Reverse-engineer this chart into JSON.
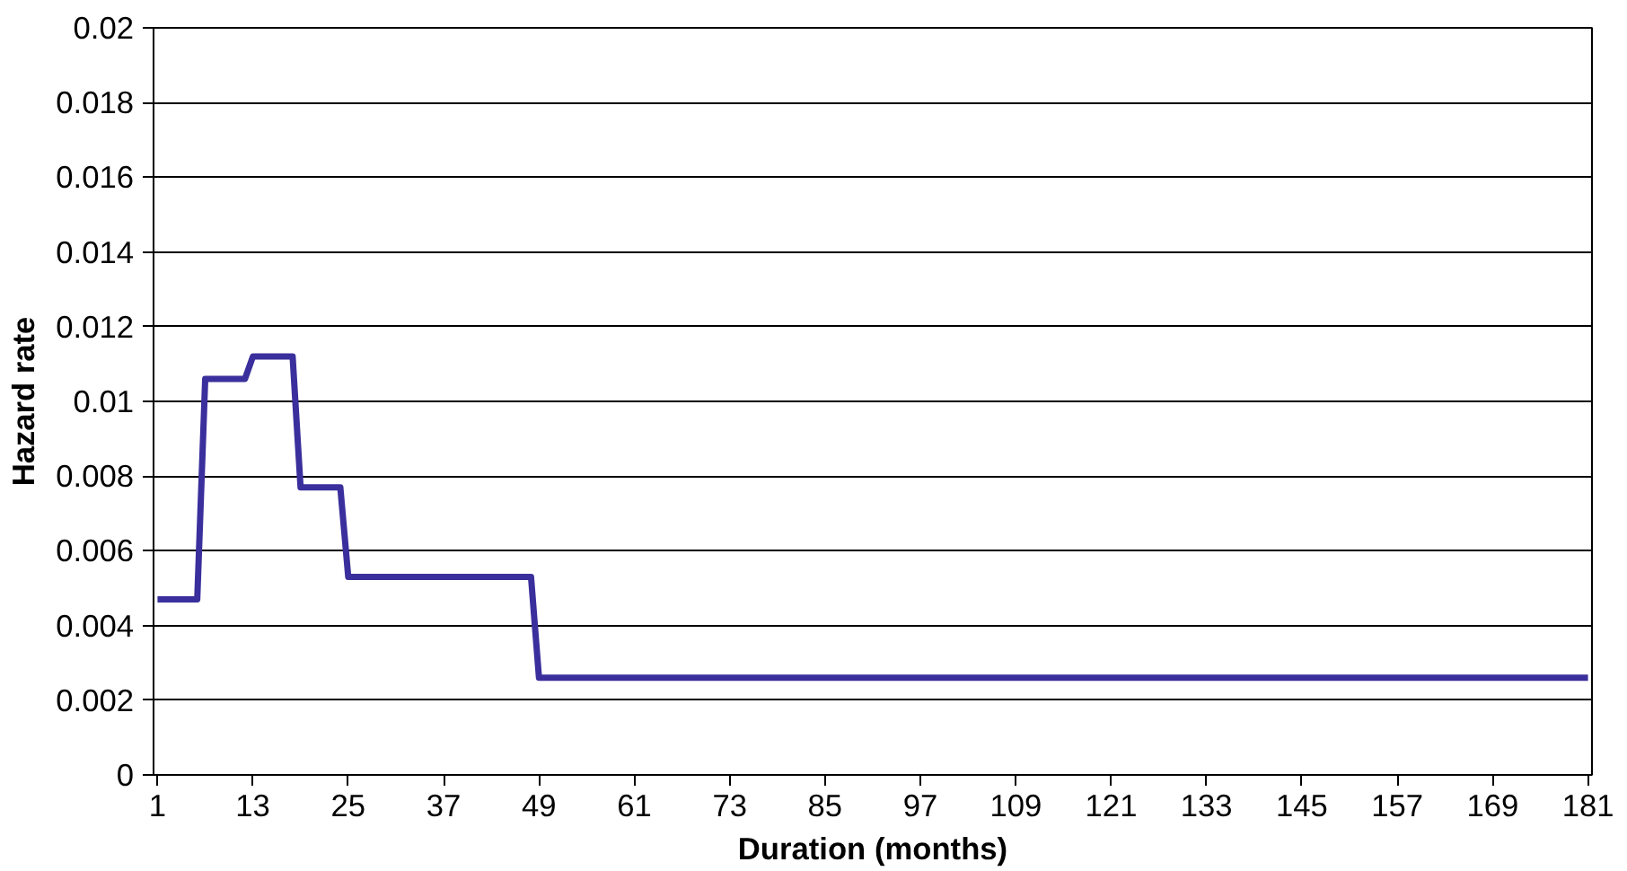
{
  "chart_data": {
    "type": "line",
    "xlabel": "Duration (months)",
    "ylabel": "Hazard rate",
    "xlim": [
      0.5,
      181.5
    ],
    "xticks": [
      1,
      13,
      25,
      37,
      49,
      61,
      73,
      85,
      97,
      109,
      121,
      133,
      145,
      157,
      169,
      181
    ],
    "ylim": [
      0,
      0.02
    ],
    "yticks": [
      0,
      0.002,
      0.004,
      0.006,
      0.008,
      0.01,
      0.012,
      0.014,
      0.016,
      0.018,
      0.02
    ],
    "grid": "y",
    "series": [
      {
        "color": "#3a2f9c",
        "x": [
          1,
          6,
          7,
          12,
          13,
          18,
          19,
          24,
          25,
          48,
          49,
          181
        ],
        "values": [
          0.0047,
          0.0047,
          0.0106,
          0.0106,
          0.0112,
          0.0112,
          0.0077,
          0.0077,
          0.0053,
          0.0053,
          0.0026,
          0.0026
        ]
      }
    ]
  }
}
